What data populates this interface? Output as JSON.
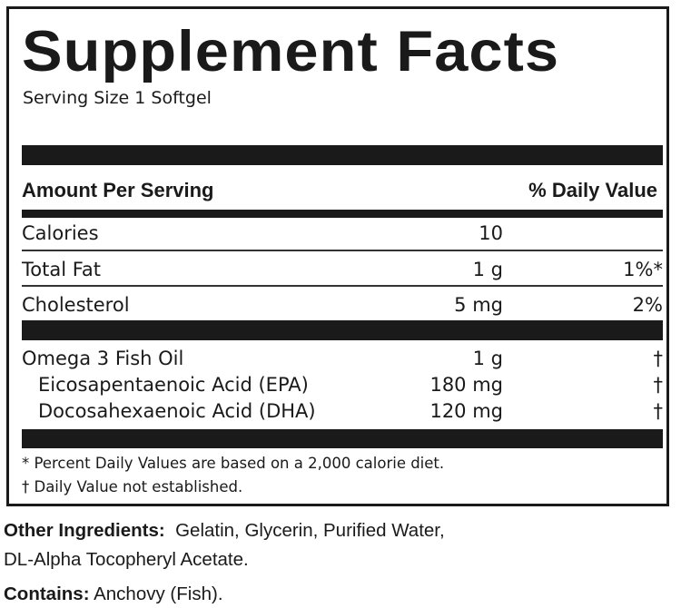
{
  "panel": {
    "title": "Supplement Facts",
    "serving_size": "Serving Size 1 Softgel",
    "header": {
      "amount_per_serving": "Amount Per Serving",
      "daily_value": "% Daily Value"
    },
    "rows": [
      {
        "name": "Calories",
        "amount": "10",
        "dv": ""
      },
      {
        "name": "Total Fat",
        "amount": "1 g",
        "dv": "1%*"
      },
      {
        "name": "Cholesterol",
        "amount": "5 mg",
        "dv": "2%"
      },
      {
        "name": "Omega 3 Fish Oil",
        "amount": "1 g",
        "dv": "†"
      },
      {
        "name": "Eicosapentaenoic Acid (EPA)",
        "amount": "180 mg",
        "dv": "†"
      },
      {
        "name": "Docosahexaenoic Acid (DHA)",
        "amount": "120 mg",
        "dv": "†"
      }
    ],
    "footnotes": [
      "*  Percent Daily Values are based on a 2,000 calorie diet.",
      "† Daily Value not established."
    ]
  },
  "other_ingredients": {
    "label": "Other Ingredients:",
    "line1": "Gelatin, Glycerin, Purified Water,",
    "line2": "DL-Alpha Tocopheryl Acetate."
  },
  "contains": {
    "label": "Contains:",
    "text": "Anchovy (Fish)."
  }
}
